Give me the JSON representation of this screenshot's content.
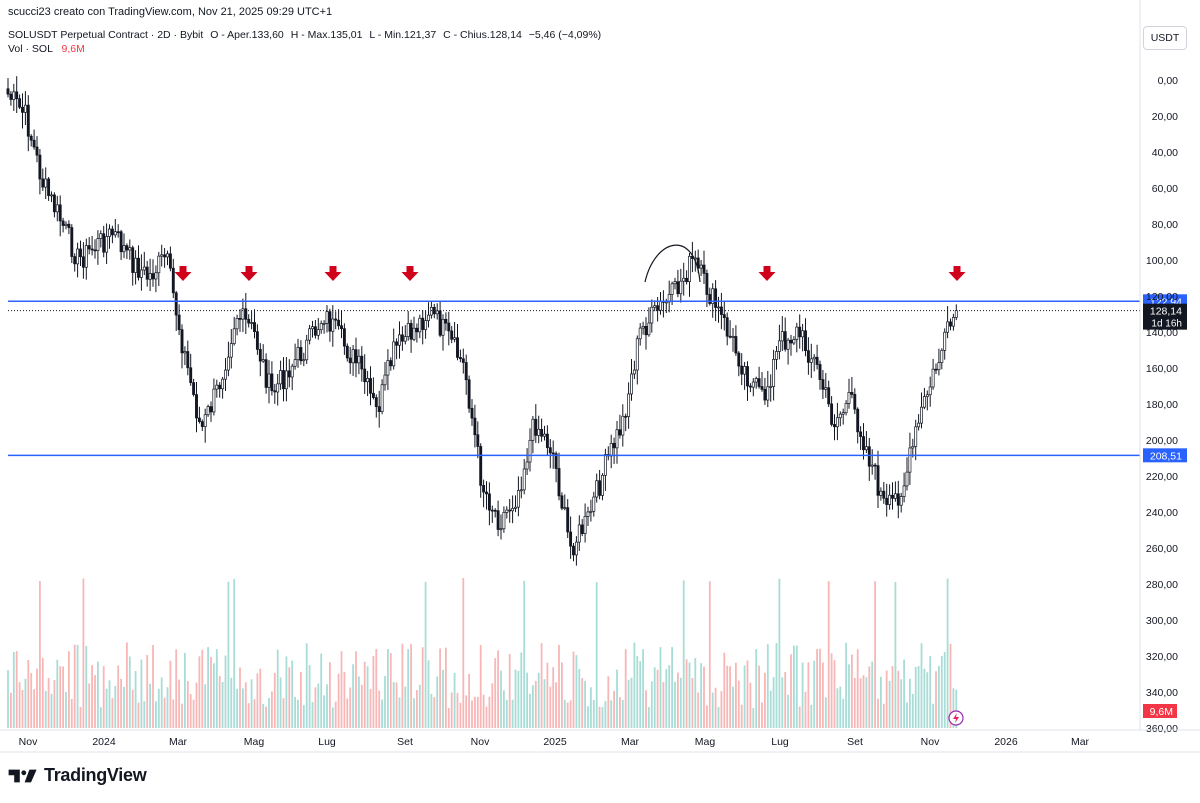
{
  "header": {
    "attribution": "scucci23 creato con TradingView.com, Nov 21, 2025 09:29 UTC+1"
  },
  "legend": {
    "symbol": "SOLUSDT Perpetual Contract · 2D · Bybit",
    "open": "O - Aper.133,60",
    "high": "H - Max.135,01",
    "low": "L - Min.121,37",
    "close": "C - Chius.128,14",
    "change": "−5,46 (−4,09%)",
    "vol_label": "Vol · SOL",
    "vol_value": "9,6M"
  },
  "currency_button": "USDT",
  "footer": {
    "brand": "TradingView"
  },
  "colors": {
    "candle": "#131722",
    "horizontal_line": "#2962ff",
    "arrow": "#d0021b",
    "vol_up": "#a8dcd6",
    "vol_down": "#f7b7b7",
    "last_price_label_bg": "#131722",
    "countdown_label_bg": "#131722",
    "vol_label_bg": "#f23645"
  },
  "chart_data": {
    "type": "candlestick",
    "symbol": "SOLUSDT Perpetual Contract",
    "interval": "2D",
    "exchange": "Bybit",
    "y_axis": {
      "inverted": true,
      "range": [
        0,
        360
      ],
      "ticks": [
        "0,00",
        "20,00",
        "40,00",
        "60,00",
        "80,00",
        "100,00",
        "120,00",
        "140,00",
        "160,00",
        "180,00",
        "200,00",
        "220,00",
        "240,00",
        "260,00",
        "280,00",
        "300,00",
        "320,00",
        "340,00",
        "360,00"
      ]
    },
    "x_axis": {
      "ticks": [
        "Nov",
        "2024",
        "Mar",
        "Mag",
        "Lug",
        "Set",
        "Nov",
        "2025",
        "Mar",
        "Mag",
        "Lug",
        "Set",
        "Nov",
        "2026",
        "Mar"
      ]
    },
    "close_path": [
      [
        "Nov 2023",
        8
      ],
      [
        "Nov 2023",
        20
      ],
      [
        "Dic 2023",
        58
      ],
      [
        "Dic 2023",
        78
      ],
      [
        "Gen 2024",
        100
      ],
      [
        "Gen 2024",
        92
      ],
      [
        "Gen 2024",
        85
      ],
      [
        "Feb 2024",
        100
      ],
      [
        "Feb 2024",
        110
      ],
      [
        "Mar 2024",
        98
      ],
      [
        "Mar 2024",
        150
      ],
      [
        "Mar 2024",
        195
      ],
      [
        "Apr 2024",
        170
      ],
      [
        "Apr 2024",
        130
      ],
      [
        "Mag 2024",
        140
      ],
      [
        "Mag 2024",
        175
      ],
      [
        "Giu 2024",
        160
      ],
      [
        "Giu 2024",
        148
      ],
      [
        "Lug 2024",
        130
      ],
      [
        "Lug 2024",
        145
      ],
      [
        "Ago 2024",
        160
      ],
      [
        "Ago 2024",
        185
      ],
      [
        "Ago 2024",
        150
      ],
      [
        "Set 2024",
        140
      ],
      [
        "Set 2024",
        128
      ],
      [
        "Ott 2024",
        142
      ],
      [
        "Ott 2024",
        160
      ],
      [
        "Nov 2024",
        225
      ],
      [
        "Nov 2024",
        245
      ],
      [
        "Dic 2024",
        230
      ],
      [
        "Dic 2024",
        190
      ],
      [
        "Gen 2025",
        205
      ],
      [
        "Gen 2025",
        260
      ],
      [
        "Gen 2025",
        245
      ],
      [
        "Feb 2025",
        215
      ],
      [
        "Feb 2025",
        190
      ],
      [
        "Mar 2025",
        140
      ],
      [
        "Mar 2025",
        128
      ],
      [
        "Apr 2025",
        118
      ],
      [
        "Apr 2025",
        100
      ],
      [
        "Apr 2025",
        120
      ],
      [
        "Mag 2025",
        140
      ],
      [
        "Mag 2025",
        162
      ],
      [
        "Giu 2025",
        178
      ],
      [
        "Giu 2025",
        145
      ],
      [
        "Lug 2025",
        140
      ],
      [
        "Lug 2025",
        158
      ],
      [
        "Ago 2025",
        190
      ],
      [
        "Ago 2025",
        178
      ],
      [
        "Set 2025",
        208
      ],
      [
        "Set 2025",
        240
      ],
      [
        "Ott 2025",
        225
      ],
      [
        "Ott 2025",
        185
      ],
      [
        "Nov 2025",
        155
      ],
      [
        "Nov 2025",
        128
      ]
    ],
    "horizontal_lines": [
      {
        "label": "122,94",
        "value": 122.94
      },
      {
        "label": "208,51",
        "value": 208.51
      }
    ],
    "last_price": {
      "label": "128,14",
      "value": 128.14,
      "countdown": "1d 16h"
    },
    "volume_last": "9,6M",
    "annotations": [
      {
        "type": "arrow-down",
        "count": 6
      },
      {
        "type": "arc",
        "position": "apr-2025 peak"
      }
    ]
  }
}
